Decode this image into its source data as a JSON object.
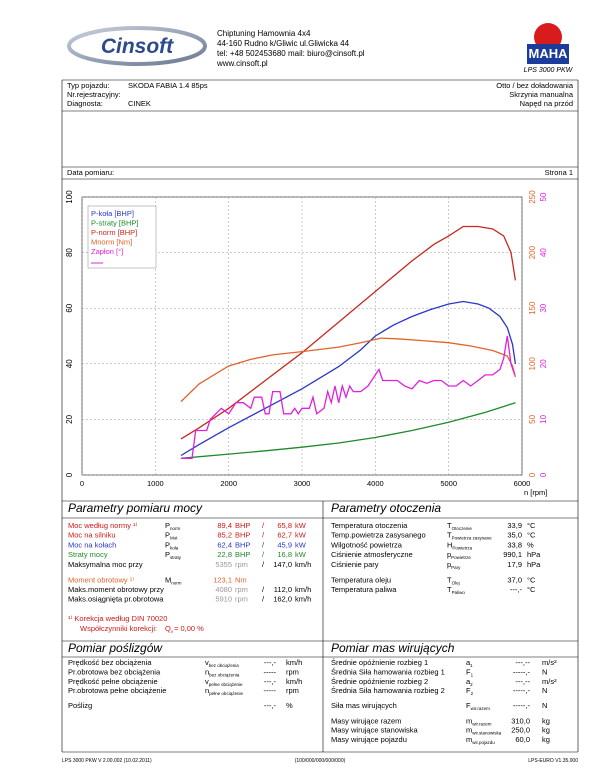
{
  "header": {
    "logo": "Cinsoft",
    "company": [
      "Chiptuning  Hamownia 4x4",
      "44-160 Rudno k/Gliwic ul.Gliwicka 44",
      "tel: +48 502453680  mail: biuro@cinsoft.pl",
      "www.cinsoft.pl"
    ],
    "brand": "MAHA",
    "model": "LPS 3000 PKW"
  },
  "vehicle": [
    {
      "label": "Typ pojazdu:",
      "value": "SKODA FABIA 1.4 85ps",
      "right": "Otto / bez doładowania"
    },
    {
      "label": "Nr.rejestracyjny:",
      "right": "Skrzynia manualna"
    },
    {
      "label": "Diagnosta:",
      "value": "CINEK",
      "right": "Napęd na przód"
    }
  ],
  "measurement": {
    "label": "Data pomiaru:",
    "page": "Strona 1"
  },
  "chart_data": {
    "type": "line",
    "x_label": "n [rpm]",
    "xlim": [
      0,
      6000
    ],
    "xticks": [
      0,
      1000,
      2000,
      3000,
      4000,
      5000,
      6000
    ],
    "ylim": [
      0,
      100
    ],
    "yticks": [
      0,
      20,
      40,
      60,
      80,
      100
    ],
    "y2lim": [
      0,
      250
    ],
    "y2ticks": [
      0,
      50,
      100,
      150,
      200,
      250
    ],
    "y3lim": [
      0,
      50
    ],
    "y3ticks": [
      0,
      10,
      20,
      30,
      40,
      50
    ],
    "grid": true,
    "legend": "upper left",
    "series": [
      {
        "name": "P-koła [BHP]",
        "color": "#2a36c8",
        "x": [
          1350,
          1600,
          2000,
          2500,
          3000,
          3500,
          3800,
          4000,
          4250,
          4500,
          4750,
          5000,
          5200,
          5400,
          5550,
          5700,
          5800,
          5870,
          5910
        ],
        "values": [
          7,
          11,
          17,
          24,
          31,
          39,
          45,
          50,
          54,
          57,
          59.5,
          61.5,
          62.4,
          61.5,
          60,
          57,
          53,
          47,
          40
        ]
      },
      {
        "name": "P-straty [BHP]",
        "color": "#1e8a2a",
        "x": [
          1350,
          2000,
          2500,
          3000,
          3500,
          4000,
          4500,
          5000,
          5500,
          5910
        ],
        "values": [
          6,
          7.5,
          8.7,
          10,
          11.5,
          13.5,
          16,
          19,
          22.5,
          26
        ]
      },
      {
        "name": "P-norm [BHP]",
        "color": "#c8281e",
        "x": [
          1350,
          1600,
          2000,
          2500,
          3000,
          3500,
          4000,
          4500,
          4800,
          5000,
          5200,
          5400,
          5600,
          5750,
          5850,
          5910
        ],
        "values": [
          13,
          17,
          24,
          34,
          44,
          55,
          66,
          77,
          83,
          86,
          89.4,
          89.4,
          88.5,
          86,
          80,
          70
        ]
      },
      {
        "name": "Mnorm [Nm]",
        "axis": "y2",
        "color": "#e0642a",
        "x": [
          1350,
          1600,
          2000,
          2300,
          2600,
          3000,
          3500,
          3800,
          4080,
          4300,
          4600,
          5000,
          5300,
          5600,
          5800,
          5870,
          5910
        ],
        "values": [
          66,
          82,
          98,
          104,
          108,
          111,
          115,
          119,
          123.1,
          122.5,
          121,
          119,
          116,
          112,
          107,
          98,
          88
        ]
      },
      {
        "name": "Zapłon [°]",
        "axis": "y3",
        "color": "#e020e0",
        "x": [
          1350,
          1500,
          1550,
          1700,
          1750,
          1900,
          2000,
          2100,
          2200,
          2300,
          2350,
          2450,
          2500,
          2550,
          2600,
          2700,
          2750,
          2850,
          2900,
          2950,
          3000,
          3100,
          3150,
          3200,
          3300,
          3350,
          3400,
          3450,
          3500,
          3550,
          3600,
          3650,
          3700,
          3800,
          3900,
          4000,
          4050,
          4100,
          4200,
          4300,
          4400,
          4500,
          4600,
          4700,
          4800,
          4900,
          5000,
          5100,
          5200,
          5300,
          5400,
          5500,
          5600,
          5700,
          5750,
          5800,
          5850,
          5900
        ],
        "values": [
          3,
          3,
          8,
          8,
          10,
          12,
          11,
          13,
          13,
          12,
          14,
          14,
          11,
          11,
          15,
          15,
          11,
          11,
          12,
          11,
          12,
          12,
          14,
          11,
          12,
          15,
          13,
          16,
          13,
          16,
          14,
          16,
          15,
          15,
          16,
          18,
          19,
          17,
          17,
          17,
          16,
          15.5,
          17,
          16.5,
          17,
          17,
          16,
          16,
          17,
          16,
          17,
          18,
          18,
          19,
          21,
          25,
          20,
          18
        ]
      }
    ]
  },
  "power": {
    "title": "Parametry pomiaru mocy",
    "rows": [
      {
        "label": "Moc według normy ¹⁾",
        "color": "#d01818",
        "sym": "P",
        "sub": "norm",
        "value": "89,4",
        "unit": "BHP",
        "sep": "/",
        "value2": "65,8",
        "unit2": "kW"
      },
      {
        "label": "Moc na silniku",
        "color": "#d01818",
        "sym": "P",
        "sub": "Mot",
        "value": "85,2",
        "unit": "BHP",
        "sep": "/",
        "value2": "62,7",
        "unit2": "kW"
      },
      {
        "label": "Moc na kołach",
        "color": "#2a36c8",
        "sym": "P",
        "sub": "koła",
        "value": "62,4",
        "unit": "BHP",
        "sep": "/",
        "value2": "45,9",
        "unit2": "kW"
      },
      {
        "label": "Straty mocy",
        "color": "#1e8a2a",
        "sym": "P",
        "sub": "straty",
        "value": "22,8",
        "unit": "BHP",
        "sep": "/",
        "value2": "16,8",
        "unit2": "kW"
      },
      {
        "label": "Maksymalna moc przy",
        "value": "5355",
        "unit": "rpm",
        "value_color": "#999999",
        "sep": "/",
        "value2": "147,0",
        "unit2": "km/h"
      },
      {
        "label": "Moment obrotowy ¹⁾",
        "color": "#e0642a",
        "sym": "M",
        "sub": "norm",
        "value": "123,1",
        "unit": "Nm"
      },
      {
        "label": "Maks.moment obrotowy przy",
        "value": "4080",
        "unit": "rpm",
        "value_color": "#999999",
        "sep": "/",
        "value2": "112,0",
        "unit2": "km/h"
      },
      {
        "label": "Maks.osiągnięta pr.obrotowa",
        "value": "5910",
        "unit": "rpm",
        "value_color": "#999999",
        "sep": "/",
        "value2": "162,0",
        "unit2": "km/h"
      }
    ],
    "note": "¹⁾ Korekcja według DIN 70020",
    "factor": {
      "label": "Współczynniki korekcji:",
      "sym": "Q",
      "sub": "v",
      "value": "=  0,00 %"
    }
  },
  "ambient": {
    "title": "Parametry otoczenia",
    "rows": [
      {
        "label": "Temperatura otoczenia",
        "sym": "T",
        "sub": "Otoczenie",
        "value": "33,9",
        "unit": "°C"
      },
      {
        "label": "Temp.powietrza zasysanego",
        "sym": "T",
        "sub": "Powietrza zasysane",
        "value": "35,0",
        "unit": "°C"
      },
      {
        "label": "Wilgotność powietrza",
        "sym": "H",
        "sub": "Powietrza",
        "value": "33,8",
        "unit": "%"
      },
      {
        "label": "Ciśnienie atmosferyczne",
        "sym": "p",
        "sub": "Powietrze",
        "value": "990,1",
        "unit": "hPa"
      },
      {
        "label": "Ciśnienie pary",
        "sym": "p",
        "sub": "Pary",
        "value": "17,9",
        "unit": "hPa"
      },
      {
        "label": "Temperatura oleju",
        "sym": "T",
        "sub": "Olej",
        "value": "37,0",
        "unit": "°C"
      },
      {
        "label": "Temperatura paliwa",
        "sym": "T",
        "sub": "Paliwo",
        "value": "---,-",
        "unit": "°C"
      }
    ]
  },
  "slip": {
    "title": "Pomiar poślizgów",
    "rows": [
      {
        "label": "Prędkość bez obciążenia",
        "sym": "v",
        "sub": "bez obciążenia",
        "value": "---,-",
        "unit": "km/h"
      },
      {
        "label": "Pr.obrotowa bez obciążenia",
        "sym": "n",
        "sub": "bez obciążenia",
        "value": "-----",
        "unit": "rpm"
      },
      {
        "label": "Prędkość pełne obciążenie",
        "sym": "v",
        "sub": "pełne obciążenie",
        "value": "---,-",
        "unit": "km/h"
      },
      {
        "label": "Pr.obrotowa pełne obciążenie",
        "sym": "n",
        "sub": "pełne obciążenie",
        "value": "-----",
        "unit": "rpm"
      },
      {
        "label": "Poślizg",
        "value": "---,-",
        "unit": "%"
      }
    ]
  },
  "masses": {
    "title": "Pomiar mas wirujących",
    "rows": [
      {
        "label": "Średnie opóźnienie rozbieg 1",
        "sym": "a",
        "sub": "1",
        "value": "---,--",
        "unit": "m/s²"
      },
      {
        "label": "Średnia Siła hamowania rozbieg 1",
        "sym": "F",
        "sub": "1",
        "value": "-----,-",
        "unit": "N"
      },
      {
        "label": "Średnie opóźnienie rozbieg 2",
        "sym": "a",
        "sub": "2",
        "value": "---,--",
        "unit": "m/s²"
      },
      {
        "label": "Średnia Siła hamowania rozbieg 2",
        "sym": "F",
        "sub": "2",
        "value": "-----,-",
        "unit": "N"
      },
      {
        "label": "Siła mas wirujących",
        "sym": "F",
        "sub": "wir.razem",
        "value": "-----,-",
        "unit": "N"
      },
      {
        "label": "Masy wirujące razem",
        "sym": "m",
        "sub": "wir.razem",
        "value": "310,0",
        "unit": "kg"
      },
      {
        "label": "Masy wirujące stanowiska",
        "sym": "m",
        "sub": "wir.stanowiska",
        "value": "250,0",
        "unit": "kg"
      },
      {
        "label": "Masy wirujące pojazdu",
        "sym": "m",
        "sub": "wir.pojazdu",
        "value": "60,0",
        "unit": "kg"
      }
    ]
  },
  "footer": {
    "left": "LPS 3000 PKW V 2.00.002 (10.02.2011)",
    "center": "(100/000/000/000/000)",
    "right": "LPS-EURO V1.35.000"
  }
}
